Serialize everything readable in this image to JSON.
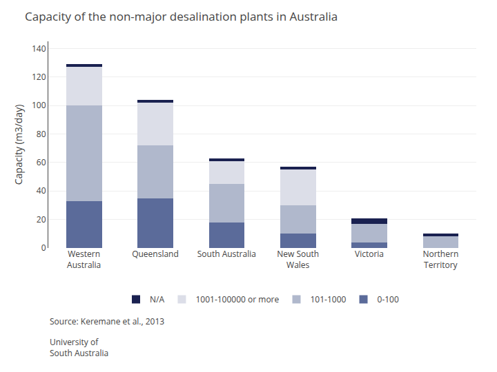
{
  "chart_data": {
    "type": "bar",
    "title": "Capacity of the non-major desalination plants in Australia",
    "ylabel": "Capacity (m3/day)",
    "categories": [
      "Western\nAustralia",
      "Queensland",
      "South Australia",
      "New South\nWales",
      "Victoria",
      "Northern\nTerritory"
    ],
    "series": [
      {
        "name": "0-100",
        "color": "#5b6b9a",
        "values": [
          33,
          35,
          18,
          10,
          4,
          0
        ]
      },
      {
        "name": "101-1000",
        "color": "#b0b8cc",
        "values": [
          67,
          37,
          27,
          20,
          13,
          8
        ]
      },
      {
        "name": "1001-100000 or more",
        "color": "#dcdee8",
        "values": [
          27,
          30,
          16,
          25,
          0,
          0
        ]
      },
      {
        "name": "N/A",
        "color": "#1a2150",
        "values": [
          2,
          2,
          2,
          2,
          4,
          2
        ]
      }
    ],
    "stacked": true,
    "ylim": [
      0,
      145
    ],
    "yticks": [
      0,
      20,
      40,
      60,
      80,
      100,
      120,
      140
    ],
    "grid": true,
    "legend": "bottom",
    "annotations": [
      "Source: Keremane et al., 2013",
      "University of\nSouth Australia"
    ]
  }
}
